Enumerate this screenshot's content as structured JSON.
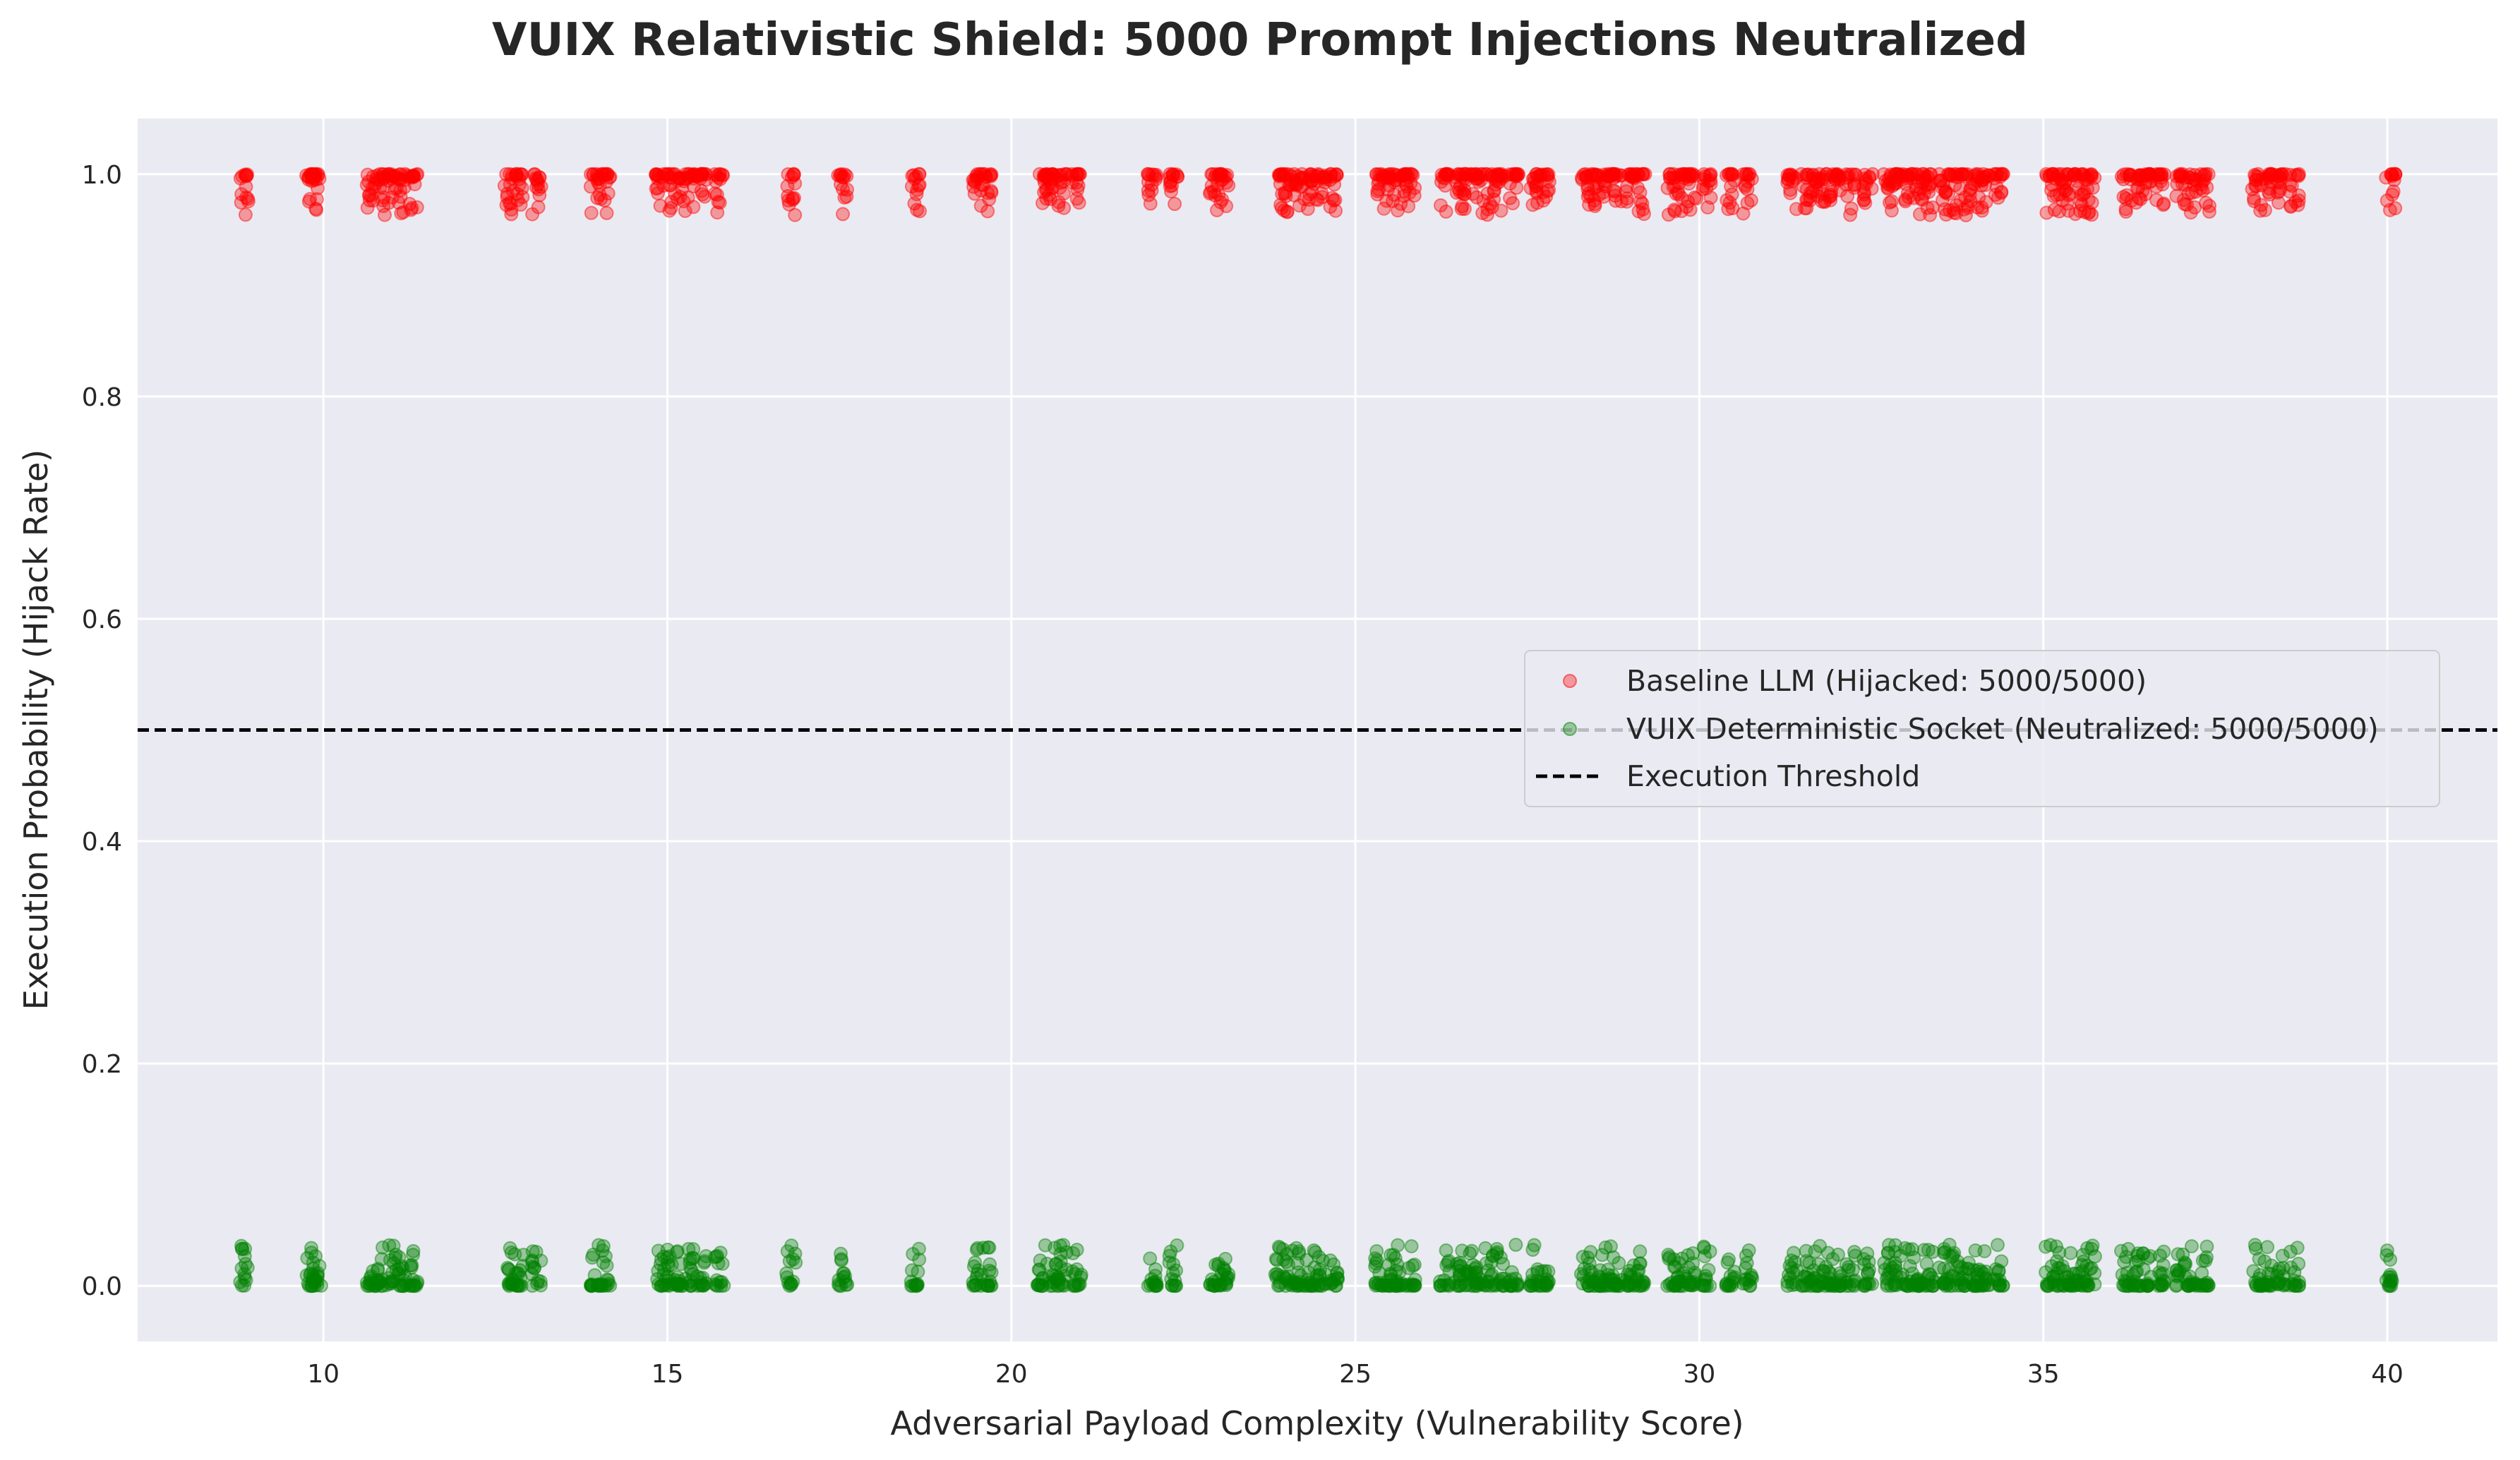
{
  "chart_data": {
    "type": "scatter",
    "title": "VUIX Relativistic Shield: 5000 Prompt Injections Neutralized",
    "xlabel": "Adversarial Payload Complexity (Vulnerability Score)",
    "ylabel": "Execution Probability (Hijack Rate)",
    "xlim": [
      7.3,
      41.6
    ],
    "ylim": [
      -0.05,
      1.05
    ],
    "xticks": [
      10,
      15,
      20,
      25,
      30,
      35,
      40
    ],
    "yticks": [
      0.0,
      0.2,
      0.4,
      0.6,
      0.8,
      1.0
    ],
    "xtick_labels": [
      "10",
      "15",
      "20",
      "25",
      "30",
      "35",
      "40"
    ],
    "ytick_labels": [
      "0.0",
      "0.2",
      "0.4",
      "0.6",
      "0.8",
      "1.0"
    ],
    "grid": true,
    "legend_position": "center-right",
    "x_clusters": [
      8.85,
      9.8,
      9.9,
      10.7,
      10.85,
      11.0,
      11.15,
      11.3,
      12.7,
      12.85,
      13.1,
      13.95,
      14.1,
      14.9,
      15.05,
      15.2,
      15.35,
      15.5,
      15.75,
      16.8,
      17.55,
      18.6,
      19.5,
      19.65,
      20.45,
      20.6,
      20.75,
      20.95,
      22.05,
      22.35,
      22.95,
      23.1,
      23.9,
      24.05,
      24.2,
      24.35,
      24.5,
      24.7,
      25.35,
      25.5,
      25.65,
      25.8,
      26.3,
      26.5,
      26.65,
      26.8,
      26.95,
      27.1,
      27.3,
      27.6,
      27.75,
      28.35,
      28.5,
      28.65,
      28.8,
      29.0,
      29.15,
      29.6,
      29.75,
      29.9,
      30.1,
      30.45,
      30.7,
      31.35,
      31.55,
      31.7,
      31.85,
      32.0,
      32.2,
      32.45,
      32.75,
      32.9,
      33.05,
      33.2,
      33.35,
      33.55,
      33.7,
      33.85,
      34.0,
      34.15,
      34.35,
      35.1,
      35.25,
      35.4,
      35.55,
      35.7,
      36.2,
      36.35,
      36.5,
      36.7,
      37.0,
      37.15,
      37.35,
      38.1,
      38.25,
      38.45,
      38.65,
      40.05
    ],
    "series": [
      {
        "name": "Baseline LLM (Hijacked: 5000/5000)",
        "color": "#ff0000",
        "y_center": 0.99,
        "y_spread_min": 0.963,
        "y_spread_max": 1.0,
        "count": 5000
      },
      {
        "name": "VUIX Deterministic Socket (Neutralized: 5000/5000)",
        "color": "#008000",
        "y_center": 0.0,
        "y_spread_min": 0.0,
        "y_spread_max": 0.037,
        "count": 5000
      }
    ],
    "hlines": [
      {
        "name": "Execution Threshold",
        "y": 0.5,
        "color": "#000000",
        "style": "dashed"
      }
    ]
  },
  "colors": {
    "plot_background": "#eaeaf2",
    "grid": "#ffffff",
    "text": "#262626"
  }
}
